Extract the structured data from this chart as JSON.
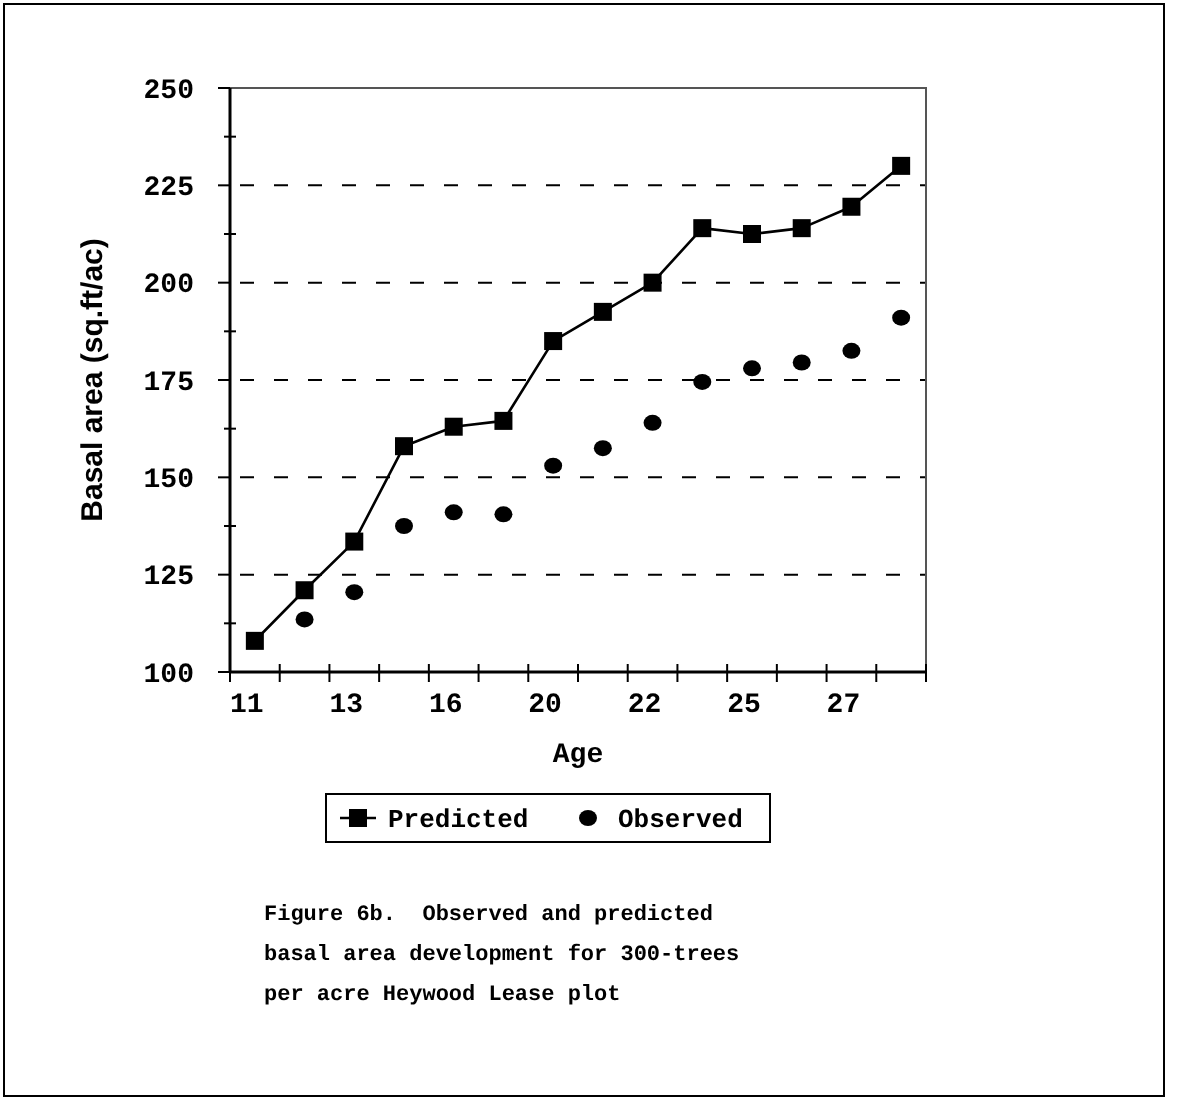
{
  "chart_data": {
    "type": "line",
    "xlabel": "Age",
    "ylabel": "Basal area (sq.ft/ac)",
    "categories": [
      "11",
      null,
      "13",
      null,
      "16",
      null,
      "20",
      null,
      "22",
      null,
      "25",
      null,
      "27",
      null
    ],
    "ylim": [
      100,
      250
    ],
    "yticks": [
      100,
      {
        "value": 112.5,
        "label": null
      },
      125,
      {
        "value": 137.5,
        "label": null
      },
      150,
      {
        "value": 162.5,
        "label": null
      },
      175,
      {
        "value": 187.5,
        "label": null
      },
      200,
      {
        "value": 212.5,
        "label": null
      },
      225,
      {
        "value": 237.5,
        "label": null
      },
      250
    ],
    "grid": "y",
    "legend": "bottom",
    "series": [
      {
        "name": "Predicted",
        "marker": "square",
        "color": "#000000",
        "values": [
          108,
          121,
          133.5,
          158,
          163,
          164.5,
          185,
          192.5,
          200,
          214,
          212.5,
          214,
          219.5,
          230
        ]
      },
      {
        "name": "Observed",
        "type": "scatter",
        "marker": "circle",
        "color": "#000000",
        "values": [
          null,
          113.5,
          120.5,
          137.5,
          141,
          140.5,
          153,
          157.5,
          164,
          174.5,
          178,
          179.5,
          182.5,
          191
        ]
      }
    ],
    "annotations": [
      "Figure 6b.  Observed and predicted basal area development for 300-trees per acre Heywood Lease plot"
    ]
  }
}
